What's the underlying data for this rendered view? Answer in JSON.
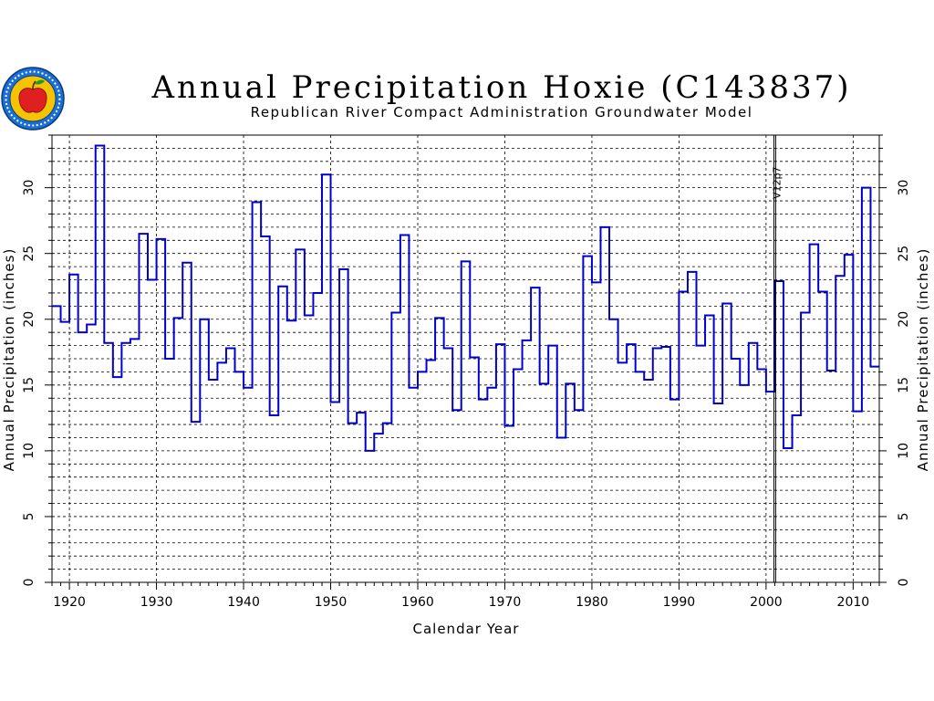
{
  "header": {
    "title": "Annual Precipitation Hoxie (C143837)",
    "subtitle": "Republican River Compact Administration Groundwater Model"
  },
  "colors": {
    "series": "#0000cc",
    "grid": "#000000",
    "logo_ring": "#1a6fd6",
    "logo_fill": "#f5c400",
    "apple": "#e02020"
  },
  "icons": {
    "logo": "apple-seal-icon"
  },
  "chart_data": {
    "type": "line",
    "step": true,
    "title": "Annual Precipitation Hoxie (C143837)",
    "subtitle": "Republican River Compact Administration Groundwater Model",
    "xlabel": "Calendar Year",
    "ylabel": "Annual Precipitation (inches)",
    "ylabel_right": "Annual Precipitation (inches)",
    "xlim": [
      1918,
      2013
    ],
    "ylim": [
      0,
      34
    ],
    "x_ticks": [
      1920,
      1930,
      1940,
      1950,
      1960,
      1970,
      1980,
      1990,
      2000,
      2010
    ],
    "y_ticks": [
      0,
      5,
      10,
      15,
      20,
      25,
      30
    ],
    "grid": true,
    "marker": {
      "x": 2001,
      "label": "V12p7"
    },
    "series": [
      {
        "x": [
          1918,
          1919,
          1920,
          1921,
          1922,
          1923,
          1924,
          1925,
          1926,
          1927,
          1928,
          1929,
          1930,
          1931,
          1932,
          1933,
          1934,
          1935,
          1936,
          1937,
          1938,
          1939,
          1940,
          1941,
          1942,
          1943,
          1944,
          1945,
          1946,
          1947,
          1948,
          1949,
          1950,
          1951,
          1952,
          1953,
          1954,
          1955,
          1956,
          1957,
          1958,
          1959,
          1960,
          1961,
          1962,
          1963,
          1964,
          1965,
          1966,
          1967,
          1968,
          1969,
          1970,
          1971,
          1972,
          1973,
          1974,
          1975,
          1976,
          1977,
          1978,
          1979,
          1980,
          1981,
          1982,
          1983,
          1984,
          1985,
          1986,
          1987,
          1988,
          1989,
          1990,
          1991,
          1992,
          1993,
          1994,
          1995,
          1996,
          1997,
          1998,
          1999,
          2000,
          2001,
          2002,
          2003,
          2004,
          2005,
          2006,
          2007,
          2008,
          2009,
          2010,
          2011,
          2012
        ],
        "values": [
          21.0,
          19.8,
          23.4,
          19.0,
          19.6,
          33.2,
          18.2,
          15.6,
          18.2,
          18.5,
          26.5,
          23.0,
          26.1,
          17.0,
          20.1,
          24.3,
          12.2,
          20.0,
          15.4,
          16.7,
          17.8,
          16.0,
          14.8,
          28.9,
          26.3,
          12.7,
          22.5,
          19.9,
          25.3,
          20.3,
          22.0,
          31.0,
          13.7,
          23.8,
          12.1,
          12.9,
          10.0,
          11.3,
          12.1,
          20.5,
          26.4,
          14.8,
          16.0,
          16.9,
          20.1,
          17.8,
          13.1,
          24.4,
          17.1,
          13.9,
          14.8,
          18.1,
          11.9,
          16.2,
          18.4,
          22.4,
          15.1,
          18.0,
          11.0,
          15.1,
          13.1,
          24.8,
          22.8,
          27.0,
          20.0,
          16.7,
          18.1,
          16.0,
          15.4,
          17.8,
          17.9,
          13.9,
          22.1,
          23.6,
          18.0,
          20.3,
          13.6,
          21.2,
          17.0,
          15.0,
          18.2,
          16.2,
          14.5,
          22.9,
          10.2,
          12.7,
          20.5,
          25.7,
          22.1,
          16.1,
          23.3,
          24.9,
          13.0,
          30.0,
          16.4
        ]
      }
    ]
  }
}
